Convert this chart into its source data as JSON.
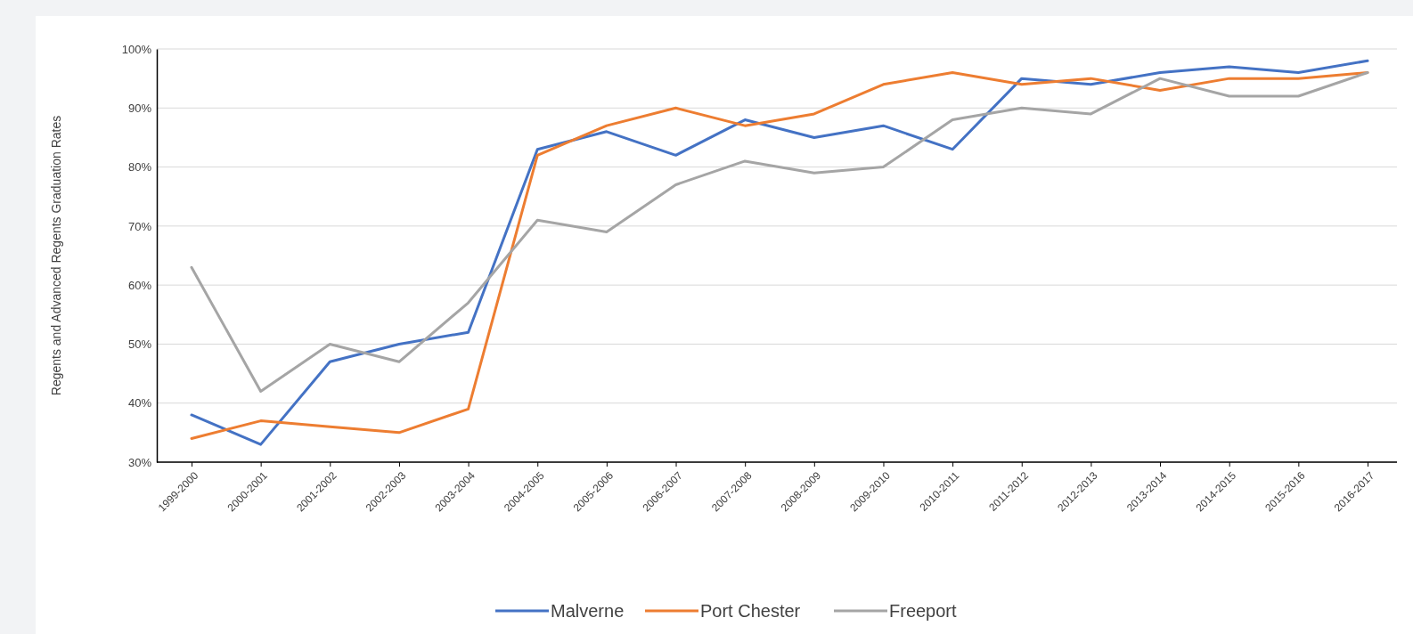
{
  "chart_data": {
    "type": "line",
    "ylabel": "Regents and Advanced Regents Graduation Rates",
    "categories": [
      "1999-2000",
      "2000-2001",
      "2001-2002",
      "2002-2003",
      "2003-2004",
      "2004-2005",
      "2005-2006",
      "2006-2007",
      "2007-2008",
      "2008-2009",
      "2009-2010",
      "2010-2011",
      "2011-2012",
      "2012-2013",
      "2013-2014",
      "2014-2015",
      "2015-2016",
      "2016-2017"
    ],
    "series": [
      {
        "name": "Malverne",
        "color": "#4472c4",
        "values": [
          38,
          33,
          47,
          50,
          52,
          83,
          86,
          82,
          88,
          85,
          87,
          83,
          95,
          94,
          96,
          97,
          96,
          98
        ]
      },
      {
        "name": "Port Chester",
        "color": "#ed7d31",
        "values": [
          34,
          37,
          36,
          35,
          39,
          82,
          87,
          90,
          87,
          89,
          94,
          96,
          94,
          95,
          93,
          95,
          95,
          96
        ]
      },
      {
        "name": "Freeport",
        "color": "#a5a5a5",
        "values": [
          63,
          42,
          50,
          47,
          57,
          71,
          69,
          77,
          81,
          79,
          80,
          88,
          90,
          89,
          95,
          92,
          92,
          96
        ]
      }
    ],
    "ylim": [
      30,
      100
    ],
    "yticks": [
      {
        "value": 30,
        "label": "30%"
      },
      {
        "value": 40,
        "label": "40%"
      },
      {
        "value": 50,
        "label": "50%"
      },
      {
        "value": 60,
        "label": "60%"
      },
      {
        "value": 70,
        "label": "70%"
      },
      {
        "value": 80,
        "label": "80%"
      },
      {
        "value": 90,
        "label": "90%"
      },
      {
        "value": 100,
        "label": "100%"
      }
    ],
    "grid": "y",
    "legend": "bottom",
    "marker": "none",
    "line_style": "solid"
  }
}
